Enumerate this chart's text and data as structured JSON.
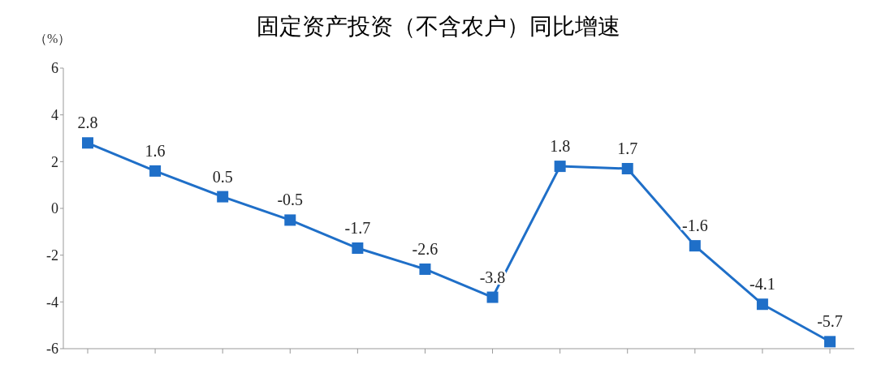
{
  "chart_data": {
    "type": "line",
    "title": "固定资产投资（不含农户）同比增速",
    "ylabel": "（%）",
    "categories": [
      null,
      null,
      null,
      null,
      null,
      null,
      null,
      null,
      null,
      null,
      null,
      null
    ],
    "series": [
      {
        "color": "#1f6fc8",
        "values": [
          2.8,
          1.6,
          0.5,
          -0.5,
          -1.7,
          -2.6,
          -3.8,
          1.8,
          1.7,
          -1.6,
          -4.1,
          -5.7
        ]
      }
    ],
    "ylim": [
      -6,
      6
    ],
    "yticks": [
      -6,
      -4,
      -2,
      0,
      2,
      4,
      6
    ],
    "grid": false,
    "legend": false,
    "marker": "square",
    "line_style": "solid",
    "data_labels": true
  }
}
